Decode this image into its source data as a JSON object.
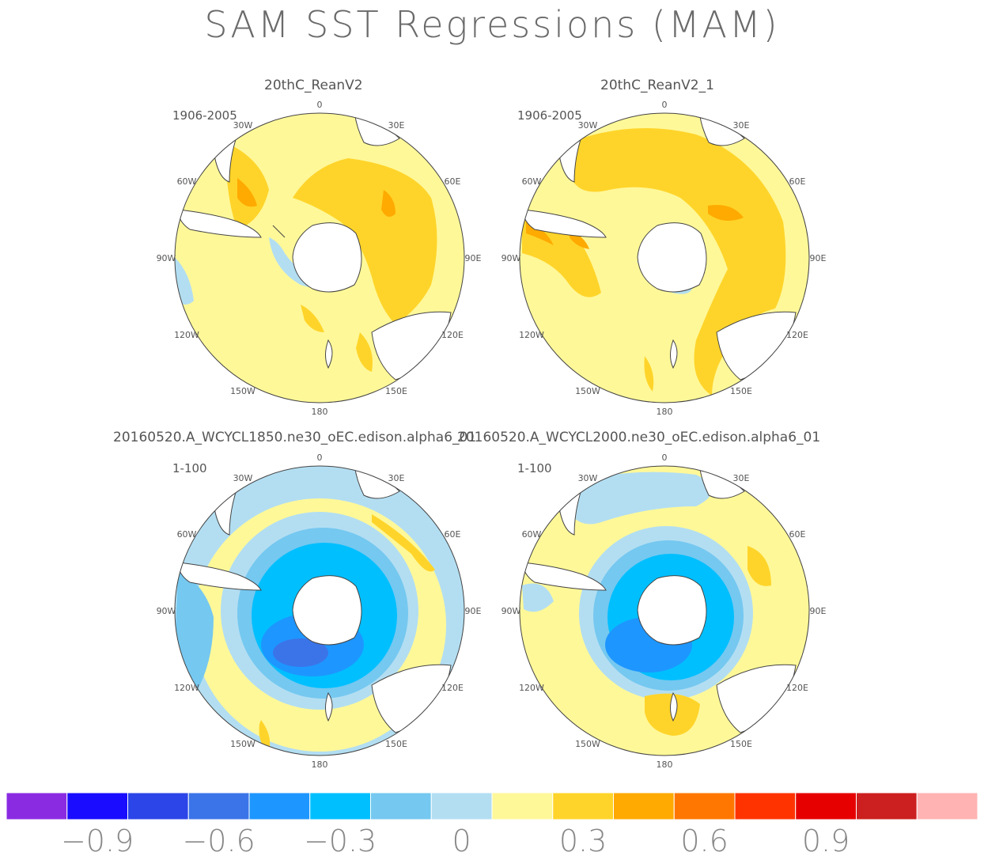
{
  "title": "SAM SST Regressions (MAM)",
  "panels": [
    {
      "title": "20thC_ReanV2",
      "period": "1906-2005"
    },
    {
      "title": "20thC_ReanV2_1",
      "period": "1906-2005"
    },
    {
      "title": "20160520.A_WCYCL1850.ne30_oEC.edison.alpha6_01",
      "period": "1-100"
    },
    {
      "title": "20160520.A_WCYCL2000.ne30_oEC.edison.alpha6_01",
      "period": "1-100"
    }
  ],
  "lon_labels": {
    "lon0": "0",
    "lon30e": "30E",
    "lon60e": "60E",
    "lon90e": "90E",
    "lon120e": "120E",
    "lon150e": "150E",
    "lon180": "180",
    "lon150w": "150W",
    "lon120w": "120W",
    "lon90w": "90W",
    "lon60w": "60W",
    "lon30w": "30W"
  },
  "colorbar": {
    "colors": [
      "#8a2be2",
      "#1a0dff",
      "#2b45e8",
      "#3b74e8",
      "#1e96ff",
      "#00bfff",
      "#75c8f0",
      "#b3def2",
      "#fff899",
      "#ffd42a",
      "#ffaa00",
      "#ff7700",
      "#ff3300",
      "#e60000",
      "#cc1f1f",
      "#ffb3b3"
    ],
    "labels": [
      "−0.9",
      "−0.6",
      "−0.3",
      "0",
      "0.3",
      "0.6",
      "0.9"
    ]
  },
  "chart_data": [
    {
      "type": "heatmap",
      "projection": "south-polar-stereographic",
      "title": "20thC_ReanV2",
      "subtitle": "1906-2005",
      "dominant_values": "mostly 0 to 0.15 (light yellow); 0.15 to 0.3 (gold) from 0 to 120E mid-latitudes; up to 0.45 near Argentina; -0.15 near Antarctic Peninsula"
    },
    {
      "type": "heatmap",
      "projection": "south-polar-stereographic",
      "title": "20thC_ReanV2_1",
      "subtitle": "1906-2005",
      "dominant_values": "broad 0.15 to 0.3 (gold) across Atlantic and Indian sectors; 0 to 0.15 over Pacific; weak negative near Antarctic coast"
    },
    {
      "type": "heatmap",
      "projection": "south-polar-stereographic",
      "title": "20160520.A_WCYCL1850.ne30_oEC.edison.alpha6_01",
      "subtitle": "1-100",
      "dominant_values": "negative ring -0.3 to -0.6 around Antarctica, strongest in Pacific sector; positive 0 to 0.3 band at mid-latitudes; negative north of 45S"
    },
    {
      "type": "heatmap",
      "projection": "south-polar-stereographic",
      "title": "20160520.A_WCYCL2000.ne30_oEC.edison.alpha6_01",
      "subtitle": "1-100",
      "dominant_values": "negative ring -0.3 to -0.6 around Antarctica; positive 0 to 0.3 at mid-latitudes incl. south of Australia; weak negative patches north"
    }
  ]
}
